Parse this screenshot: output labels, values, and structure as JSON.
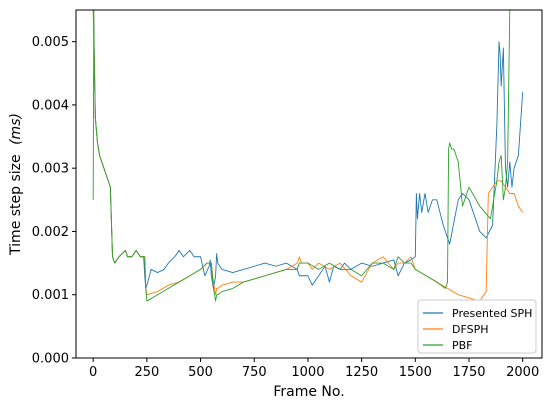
{
  "chart_data": {
    "type": "line",
    "xlabel": "Frame No.",
    "ylabel_main": "Time step size",
    "ylabel_unit": "(ms)",
    "xlim": [
      -80,
      2090
    ],
    "ylim": [
      0.0,
      0.0055
    ],
    "x_ticks": [
      0,
      250,
      500,
      750,
      1000,
      1250,
      1500,
      1750,
      2000
    ],
    "x_tick_labels": [
      "0",
      "250",
      "500",
      "750",
      "1000",
      "1250",
      "1500",
      "1750",
      "2000"
    ],
    "y_ticks": [
      0.0,
      0.001,
      0.002,
      0.003,
      0.004,
      0.005
    ],
    "y_tick_labels": [
      "0.000",
      "0.001",
      "0.002",
      "0.003",
      "0.004",
      "0.005"
    ],
    "grid": false,
    "legend_position": "bottom-right",
    "series": [
      {
        "name": "Presented SPH",
        "color": "#1f77b4",
        "x": [
          0,
          5,
          10,
          20,
          30,
          40,
          50,
          60,
          70,
          80,
          90,
          100,
          120,
          150,
          160,
          180,
          200,
          220,
          235,
          240,
          245,
          250,
          270,
          300,
          330,
          350,
          380,
          400,
          420,
          450,
          470,
          500,
          520,
          540,
          545,
          550,
          560,
          570,
          575,
          580,
          600,
          650,
          700,
          750,
          800,
          850,
          900,
          950,
          960,
          1000,
          1020,
          1050,
          1080,
          1100,
          1120,
          1150,
          1170,
          1200,
          1250,
          1300,
          1350,
          1400,
          1420,
          1450,
          1480,
          1500,
          1505,
          1510,
          1520,
          1530,
          1545,
          1560,
          1580,
          1600,
          1630,
          1660,
          1700,
          1720,
          1750,
          1780,
          1800,
          1830,
          1860,
          1880,
          1890,
          1895,
          1900,
          1910,
          1920,
          1930,
          1940,
          1950,
          1960,
          1980,
          2000
        ],
        "y": [
          0.0055,
          0.0048,
          0.0038,
          0.0034,
          0.0032,
          0.0031,
          0.003,
          0.0029,
          0.0028,
          0.0027,
          0.0016,
          0.0015,
          0.0016,
          0.0017,
          0.0016,
          0.0016,
          0.0017,
          0.0016,
          0.0016,
          0.0013,
          0.0011,
          0.00115,
          0.0014,
          0.00135,
          0.0014,
          0.0015,
          0.0016,
          0.0017,
          0.0016,
          0.0017,
          0.0016,
          0.0016,
          0.0013,
          0.00145,
          0.00155,
          0.0013,
          0.0011,
          0.0013,
          0.00165,
          0.0015,
          0.0014,
          0.00135,
          0.0014,
          0.00145,
          0.0015,
          0.00145,
          0.0015,
          0.0014,
          0.0013,
          0.0013,
          0.00115,
          0.0013,
          0.00145,
          0.0012,
          0.00145,
          0.0014,
          0.0015,
          0.0014,
          0.0015,
          0.00145,
          0.0015,
          0.00155,
          0.0013,
          0.0015,
          0.00155,
          0.0016,
          0.0026,
          0.0022,
          0.0026,
          0.0023,
          0.0026,
          0.0023,
          0.0025,
          0.0025,
          0.0021,
          0.0018,
          0.0025,
          0.0026,
          0.0025,
          0.0022,
          0.002,
          0.0019,
          0.0021,
          0.0037,
          0.005,
          0.0048,
          0.0043,
          0.0049,
          0.003,
          0.0027,
          0.0031,
          0.0027,
          0.003,
          0.0032,
          0.0042
        ]
      },
      {
        "name": "DFSPH",
        "color": "#ff7f0e",
        "x": [
          0,
          5,
          10,
          20,
          30,
          40,
          50,
          60,
          70,
          80,
          90,
          100,
          120,
          150,
          160,
          180,
          200,
          220,
          240,
          245,
          250,
          300,
          350,
          400,
          450,
          500,
          530,
          550,
          560,
          570,
          575,
          580,
          600,
          650,
          700,
          750,
          800,
          850,
          900,
          950,
          960,
          970,
          1000,
          1020,
          1050,
          1100,
          1150,
          1200,
          1250,
          1300,
          1350,
          1400,
          1420,
          1450,
          1480,
          1500,
          1550,
          1600,
          1650,
          1700,
          1750,
          1800,
          1830,
          1840,
          1860,
          1880,
          1900,
          1920,
          1940,
          1960,
          1980,
          2000
        ],
        "y": [
          0.0055,
          0.0048,
          0.0038,
          0.0034,
          0.0032,
          0.0031,
          0.003,
          0.0029,
          0.0028,
          0.0027,
          0.0016,
          0.0015,
          0.0016,
          0.0017,
          0.0016,
          0.0016,
          0.0017,
          0.0016,
          0.0016,
          0.0011,
          0.001,
          0.00105,
          0.00115,
          0.0012,
          0.0013,
          0.0014,
          0.0015,
          0.0015,
          0.0012,
          0.001,
          0.0011,
          0.0011,
          0.00115,
          0.0012,
          0.0012,
          0.00125,
          0.0013,
          0.00135,
          0.0014,
          0.0015,
          0.0016,
          0.0015,
          0.0015,
          0.0014,
          0.0015,
          0.0014,
          0.0015,
          0.0013,
          0.0012,
          0.0015,
          0.0016,
          0.0014,
          0.0015,
          0.0015,
          0.0016,
          0.0014,
          0.0013,
          0.0012,
          0.0011,
          0.001,
          0.00095,
          0.0009,
          0.00105,
          0.0026,
          0.0027,
          0.0028,
          0.0028,
          0.0027,
          0.0026,
          0.0026,
          0.0024,
          0.0023
        ]
      },
      {
        "name": "PBF",
        "color": "#2ca02c",
        "x": [
          0,
          3,
          5,
          10,
          20,
          30,
          40,
          50,
          60,
          70,
          80,
          90,
          100,
          120,
          150,
          160,
          180,
          200,
          220,
          240,
          245,
          250,
          300,
          350,
          400,
          450,
          500,
          530,
          550,
          560,
          570,
          575,
          580,
          600,
          650,
          700,
          750,
          800,
          850,
          900,
          950,
          960,
          1000,
          1050,
          1100,
          1150,
          1200,
          1250,
          1300,
          1350,
          1400,
          1420,
          1450,
          1480,
          1500,
          1550,
          1600,
          1640,
          1650,
          1655,
          1660,
          1670,
          1680,
          1700,
          1720,
          1750,
          1800,
          1850,
          1880,
          1890,
          1900,
          1910,
          1920,
          1930,
          1940,
          1945,
          1950,
          1955
        ],
        "y": [
          0.0025,
          0.0055,
          0.0048,
          0.0038,
          0.0034,
          0.0032,
          0.0031,
          0.003,
          0.0029,
          0.0028,
          0.0027,
          0.0016,
          0.0015,
          0.0016,
          0.0017,
          0.0016,
          0.0016,
          0.0017,
          0.0016,
          0.0016,
          0.0011,
          0.0009,
          0.001,
          0.0011,
          0.0012,
          0.0013,
          0.0014,
          0.0015,
          0.0015,
          0.0011,
          0.0009,
          0.001,
          0.001,
          0.00105,
          0.0011,
          0.0012,
          0.00125,
          0.0013,
          0.00135,
          0.0014,
          0.0014,
          0.0015,
          0.0015,
          0.0014,
          0.0015,
          0.0014,
          0.0014,
          0.0013,
          0.0015,
          0.0015,
          0.0014,
          0.0016,
          0.0015,
          0.0015,
          0.0014,
          0.0013,
          0.0012,
          0.0011,
          0.0012,
          0.0033,
          0.0034,
          0.0033,
          0.0033,
          0.0031,
          0.0024,
          0.0027,
          0.0024,
          0.0022,
          0.0028,
          0.0031,
          0.0032,
          0.0025,
          0.0027,
          0.0031,
          0.0055,
          0.0055,
          0.0055,
          0.0055
        ]
      }
    ]
  }
}
